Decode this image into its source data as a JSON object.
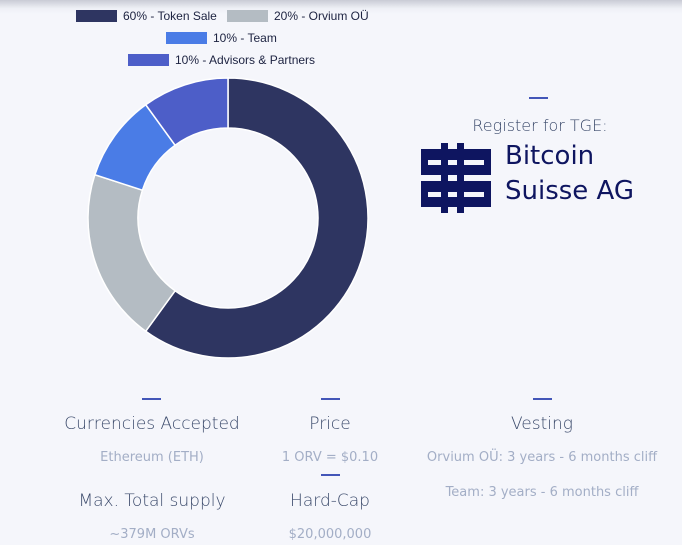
{
  "chart_data": {
    "type": "pie",
    "variant": "donut",
    "legend_position": "top",
    "slices": [
      {
        "legend": "60% - Token Sale",
        "value": 60,
        "color": "#2e3561"
      },
      {
        "legend": "20% - Orvium OÜ",
        "value": 20,
        "color": "#b4bcc3"
      },
      {
        "legend": "10% - Team",
        "value": 10,
        "color": "#4a7ce6"
      },
      {
        "legend": "10% - Advisors & Partners",
        "value": 10,
        "color": "#4d5ec8"
      }
    ]
  },
  "tge": {
    "label": "Register for TGE:",
    "brand_line1": "Bitcoin",
    "brand_line2": "Suisse AG",
    "brand_color": "#0e1560"
  },
  "info": {
    "currencies": {
      "title": "Currencies Accepted",
      "value": "Ethereum (ETH)"
    },
    "price": {
      "title": "Price",
      "value": "1 ORV = $0.10"
    },
    "vesting": {
      "title": "Vesting",
      "lines": [
        "Orvium OÜ: 3 years - 6 months cliff",
        "Team: 3 years - 6 months cliff"
      ]
    },
    "supply": {
      "title": "Max. Total supply",
      "value": "~379M ORVs"
    },
    "hardcap": {
      "title": "Hard-Cap",
      "value": "$20,000,000"
    }
  },
  "colors": {
    "accent_dash": "#4356b8",
    "title_text": "#3b4a6b",
    "value_text": "#a3aec6"
  }
}
